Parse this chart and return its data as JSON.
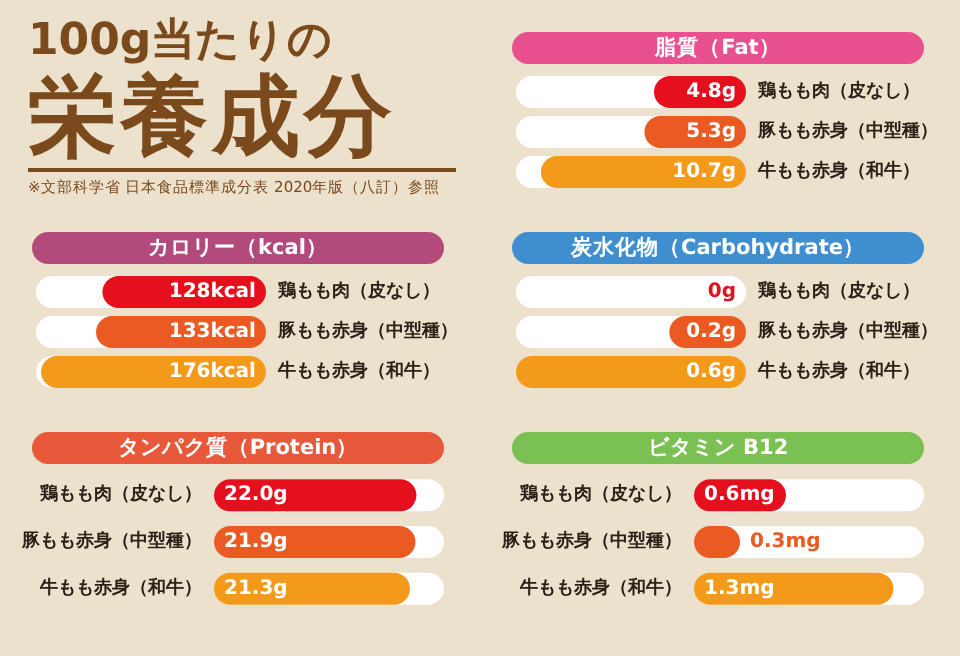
{
  "chart_data": [
    {
      "type": "other",
      "title": "100g当たりの",
      "subtitle": "栄養成分",
      "annotations": [
        "※文部科学省 日本食品標準成分表 2020年版（八訂）参照"
      ]
    },
    {
      "type": "bar",
      "orientation": "horizontal",
      "title": "脂質（Fat）",
      "categories": [
        "鶏もも肉（皮なし）",
        "豚もも赤身（中型種）",
        "牛もも赤身（和牛）"
      ],
      "values": [
        4.8,
        5.3,
        10.7
      ],
      "value_labels": [
        "4.8g",
        "5.3g",
        "10.7g"
      ],
      "colors": [
        "#e60f1e",
        "#ea5a22",
        "#f39a1a"
      ]
    },
    {
      "type": "bar",
      "orientation": "horizontal",
      "title": "カロリー（kcal）",
      "categories": [
        "鶏もも肉（皮なし）",
        "豚もも赤身（中型種）",
        "牛もも赤身（和牛）"
      ],
      "values": [
        128,
        133,
        176
      ],
      "value_labels": [
        "128kcal",
        "133kcal",
        "176kcal"
      ],
      "colors": [
        "#e60f1e",
        "#ea5a22",
        "#f39a1a"
      ]
    },
    {
      "type": "bar",
      "orientation": "horizontal",
      "title": "炭水化物（Carbohydrate）",
      "categories": [
        "鶏もも肉（皮なし）",
        "豚もも赤身（中型種）",
        "牛もも赤身（和牛）"
      ],
      "values": [
        0,
        0.2,
        0.6
      ],
      "value_labels": [
        "0g",
        "0.2g",
        "0.6g"
      ],
      "colors": [
        "#e60f1e",
        "#ea5a22",
        "#f39a1a"
      ]
    },
    {
      "type": "bar",
      "orientation": "horizontal",
      "title": "タンパク質（Protein）",
      "categories": [
        "鶏もも肉（皮なし）",
        "豚もも赤身（中型種）",
        "牛もも赤身（和牛）"
      ],
      "values": [
        22.0,
        21.9,
        21.3
      ],
      "value_labels": [
        "22.0g",
        "21.9g",
        "21.3g"
      ],
      "colors": [
        "#e60f1e",
        "#ea5a22",
        "#f39a1a"
      ]
    },
    {
      "type": "bar",
      "orientation": "horizontal",
      "title": "ビタミン B12",
      "categories": [
        "鶏もも肉（皮なし）",
        "豚もも赤身（中型種）",
        "牛もも赤身（和牛）"
      ],
      "values": [
        0.6,
        0.3,
        1.3
      ],
      "value_labels": [
        "0.6mg",
        "0.3mg",
        "1.3mg"
      ],
      "colors": [
        "#e60f1e",
        "#ea5a22",
        "#f39a1a"
      ]
    }
  ]
}
